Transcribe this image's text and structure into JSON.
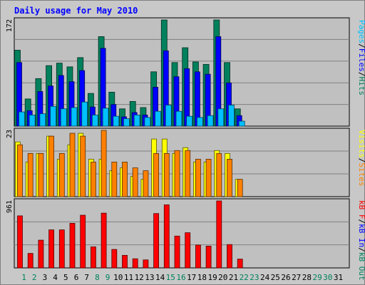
{
  "chart_data": {
    "type": "bar",
    "title": "Daily usage for May 2010",
    "categories": [
      "1",
      "2",
      "3",
      "4",
      "5",
      "6",
      "7",
      "8",
      "9",
      "10",
      "11",
      "12",
      "13",
      "14",
      "15",
      "16",
      "17",
      "18",
      "19",
      "20",
      "21",
      "22",
      "23",
      "24",
      "25",
      "26",
      "27",
      "28",
      "29",
      "30",
      "31"
    ],
    "weekend_days": [
      "1",
      "2",
      "8",
      "9",
      "15",
      "16",
      "22",
      "23",
      "29",
      "30"
    ],
    "colors": {
      "hits": "#00805c",
      "files": "#0000ff",
      "pages": "#00c0ff",
      "visits": "#ffff00",
      "sites": "#ff8000",
      "kbytes": "#ff0000",
      "title": "#0000ff",
      "weekday_label": "#000000",
      "weekend_label": "#00805c",
      "panel_bg": "#c0c0c0"
    },
    "panels": [
      {
        "id": "hits-files-pages",
        "ymax_label": "172",
        "ymax": 172,
        "side_label": [
          {
            "text": "Pages",
            "color": "#00c0ff"
          },
          {
            "text": "/",
            "color": "#000000"
          },
          {
            "text": "Files",
            "color": "#0000ff"
          },
          {
            "text": "/",
            "color": "#000000"
          },
          {
            "text": "Hits",
            "color": "#00805c"
          }
        ],
        "series": [
          {
            "name": "Hits",
            "color": "#00805c",
            "values": [
              123,
              44,
              77,
              98,
              102,
              96,
              111,
              53,
              145,
              55,
              28,
              40,
              30,
              88,
              172,
              103,
              127,
              104,
              100,
              172,
              103,
              28,
              0,
              0,
              0,
              0,
              0,
              0,
              0,
              0,
              0
            ]
          },
          {
            "name": "Files",
            "color": "#0000ff",
            "values": [
              103,
              25,
              56,
              65,
              82,
              72,
              90,
              31,
              126,
              35,
              15,
              22,
              18,
              63,
              122,
              80,
              93,
              88,
              84,
              145,
              70,
              17,
              0,
              0,
              0,
              0,
              0,
              0,
              0,
              0,
              0
            ]
          },
          {
            "name": "Pages",
            "color": "#00c0ff",
            "values": [
              23,
              18,
              20,
              32,
              28,
              30,
              39,
              18,
              29,
              16,
              12,
              18,
              14,
              24,
              34,
              24,
              16,
              14,
              17,
              28,
              34,
              8,
              0,
              0,
              0,
              0,
              0,
              0,
              0,
              0,
              0
            ]
          }
        ]
      },
      {
        "id": "visits-sites",
        "ymax_label": "23",
        "ymax": 23,
        "side_label": [
          {
            "text": "Visits",
            "color": "#ffff00"
          },
          {
            "text": "/",
            "color": "#000000"
          },
          {
            "text": "Sites",
            "color": "#ff8000"
          }
        ],
        "series": [
          {
            "name": "Visits",
            "color": "#ffff00",
            "values": [
              19,
              12,
              15,
              21,
              13,
              18,
              22,
              13,
              13,
              9,
              10,
              7,
              6,
              20,
              20,
              15,
              17,
              12,
              12,
              16,
              15,
              6,
              0,
              0,
              0,
              0,
              0,
              0,
              0,
              0,
              0
            ]
          },
          {
            "name": "Sites",
            "color": "#ff8000",
            "values": [
              18,
              15,
              15,
              21,
              15,
              22,
              21,
              12,
              23,
              12,
              12,
              10,
              9,
              15,
              15,
              16,
              16,
              13,
              13,
              15,
              13,
              6,
              0,
              0,
              0,
              0,
              0,
              0,
              0,
              0,
              0
            ]
          }
        ]
      },
      {
        "id": "kbytes",
        "ymax_label": "961",
        "ymax": 961,
        "side_label": [
          {
            "text": "kB F",
            "color": "#ff0000"
          },
          {
            "text": "/",
            "color": "#000000"
          },
          {
            "text": "kB In",
            "color": "#0000ff"
          },
          {
            "text": "/",
            "color": "#000000"
          },
          {
            "text": "kB Out",
            "color": "#00805c"
          }
        ],
        "series": [
          {
            "name": "kB F",
            "color": "#ff0000",
            "values": [
              747,
              208,
              398,
              546,
              546,
              640,
              756,
              302,
              786,
              265,
              180,
              131,
              115,
              780,
              905,
              457,
              505,
              328,
              313,
              961,
              335,
              126,
              0,
              0,
              0,
              0,
              0,
              0,
              0,
              0,
              0
            ]
          }
        ]
      }
    ]
  }
}
